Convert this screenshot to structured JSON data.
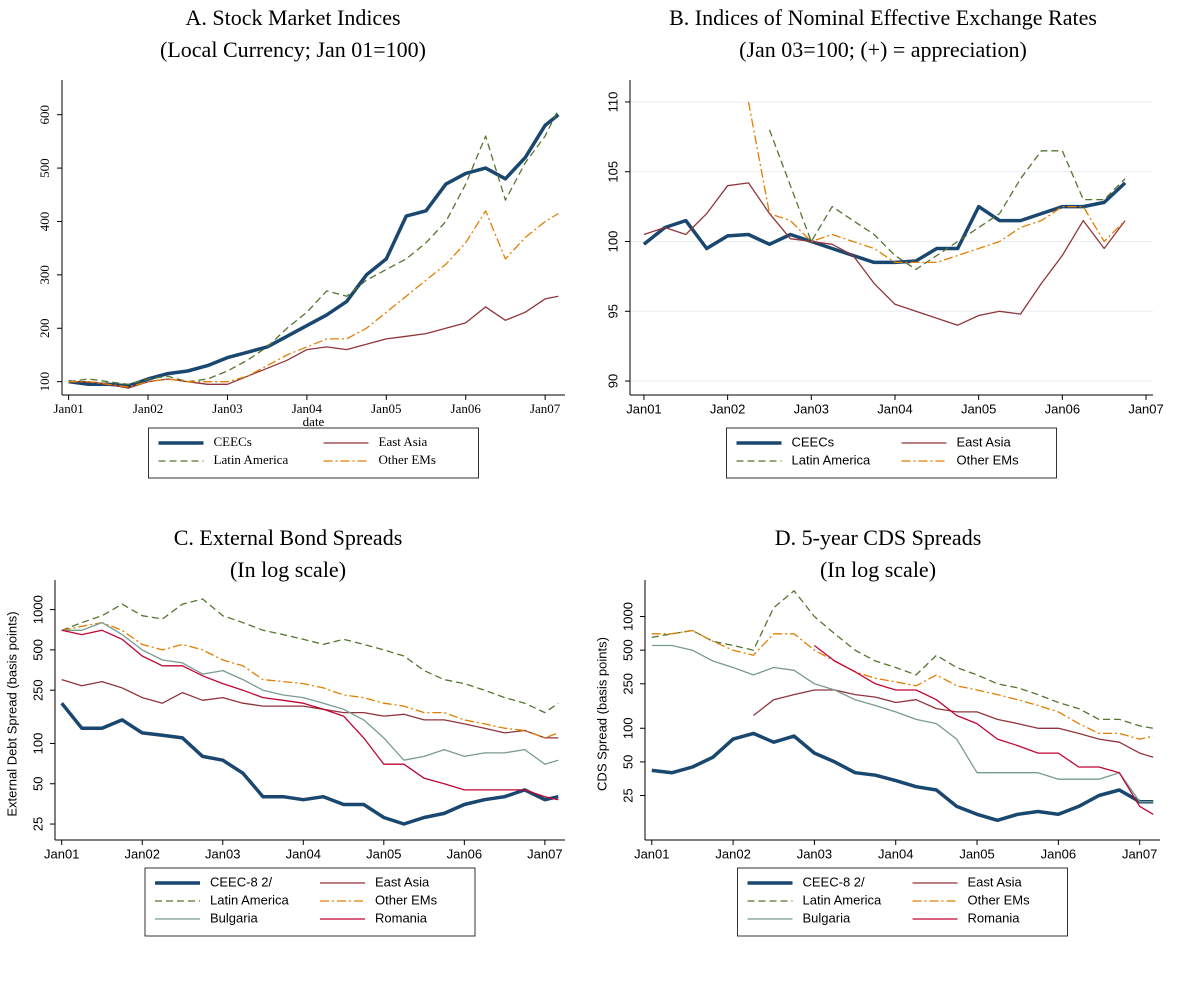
{
  "chart_data": [
    {
      "type": "line",
      "title": "A. Stock Market Indices",
      "subtitle": "(Local Currency; Jan 01=100)",
      "x_label": "date",
      "legend": "bottom",
      "grid": false,
      "x": [
        "2001-01",
        "2001-04",
        "2001-07",
        "2001-10",
        "2002-01",
        "2002-04",
        "2002-07",
        "2002-10",
        "2003-01",
        "2003-04",
        "2003-07",
        "2003-10",
        "2004-01",
        "2004-04",
        "2004-07",
        "2004-10",
        "2005-01",
        "2005-04",
        "2005-07",
        "2005-10",
        "2006-01",
        "2006-04",
        "2006-07",
        "2006-10",
        "2007-01",
        "2007-03"
      ],
      "xlim": [
        "2000-12",
        "2007-04"
      ],
      "xticks": [
        {
          "value": "2001-01",
          "label": "Jan01"
        },
        {
          "value": "2002-01",
          "label": "Jan02"
        },
        {
          "value": "2003-01",
          "label": "Jan03"
        },
        {
          "value": "2004-01",
          "label": "Jan04"
        },
        {
          "value": "2005-01",
          "label": "Jan05"
        },
        {
          "value": "2006-01",
          "label": "Jan06"
        },
        {
          "value": "2007-01",
          "label": "Jan07"
        }
      ],
      "ylim": [
        75,
        650
      ],
      "yticks": [
        100,
        200,
        300,
        400,
        500,
        600
      ],
      "series": [
        {
          "name": "CEECs",
          "color": "#1a476f",
          "style": "thick",
          "values": [
            100,
            95,
            95,
            92,
            105,
            115,
            120,
            130,
            145,
            155,
            165,
            185,
            205,
            225,
            250,
            300,
            330,
            410,
            420,
            470,
            490,
            500,
            480,
            520,
            580,
            600
          ]
        },
        {
          "name": "East Asia",
          "color": "#90353b",
          "style": "solid",
          "values": [
            100,
            100,
            95,
            88,
            100,
            105,
            100,
            95,
            95,
            110,
            125,
            140,
            160,
            165,
            160,
            170,
            180,
            185,
            190,
            200,
            210,
            240,
            215,
            230,
            255,
            260
          ]
        },
        {
          "name": "Latin America",
          "color": "#55752f",
          "style": "dash",
          "values": [
            100,
            105,
            100,
            95,
            105,
            110,
            100,
            105,
            120,
            140,
            165,
            200,
            230,
            270,
            260,
            290,
            310,
            330,
            360,
            400,
            470,
            560,
            440,
            510,
            560,
            610
          ]
        },
        {
          "name": "Other EMs",
          "color": "#e37e00",
          "style": "dashdot",
          "values": [
            100,
            100,
            95,
            90,
            100,
            105,
            100,
            100,
            100,
            110,
            130,
            150,
            165,
            180,
            180,
            200,
            230,
            260,
            290,
            320,
            360,
            420,
            330,
            370,
            400,
            415
          ]
        }
      ]
    },
    {
      "type": "line",
      "title": "B. Indices of Nominal Effective Exchange Rates",
      "subtitle": "(Jan 03=100; (+) = appreciation)",
      "legend": "bottom",
      "grid": true,
      "x": [
        "2001-01",
        "2001-04",
        "2001-07",
        "2001-10",
        "2002-01",
        "2002-04",
        "2002-07",
        "2002-10",
        "2003-01",
        "2003-04",
        "2003-07",
        "2003-10",
        "2004-01",
        "2004-04",
        "2004-07",
        "2004-10",
        "2005-01",
        "2005-04",
        "2005-07",
        "2005-10",
        "2006-01",
        "2006-04",
        "2006-07",
        "2006-10"
      ],
      "xlim": [
        "2000-11",
        "2007-02"
      ],
      "xticks": [
        {
          "value": "2001-01",
          "label": "Jan01"
        },
        {
          "value": "2002-01",
          "label": "Jan02"
        },
        {
          "value": "2003-01",
          "label": "Jan03"
        },
        {
          "value": "2004-01",
          "label": "Jan04"
        },
        {
          "value": "2005-01",
          "label": "Jan05"
        },
        {
          "value": "2006-01",
          "label": "Jan06"
        },
        {
          "value": "2007-01",
          "label": "Jan07"
        }
      ],
      "ylim": [
        89,
        111
      ],
      "yticks": [
        90,
        95,
        100,
        105,
        110
      ],
      "series": [
        {
          "name": "CEECs",
          "color": "#1a476f",
          "style": "thick",
          "values": [
            99.8,
            101,
            101.5,
            99.5,
            100.4,
            100.5,
            99.8,
            100.5,
            100,
            99.5,
            99,
            98.5,
            98.5,
            98.6,
            99.5,
            99.5,
            102.5,
            101.5,
            101.5,
            102,
            102.5,
            102.5,
            102.8,
            104.2
          ]
        },
        {
          "name": "East Asia",
          "color": "#90353b",
          "style": "solid",
          "values": [
            100.5,
            101,
            100.5,
            102,
            104,
            104.2,
            102,
            100.2,
            100,
            99.8,
            99,
            97,
            95.5,
            95,
            94.5,
            94,
            94.7,
            95,
            94.8,
            97,
            99,
            101.5,
            99.5,
            101.5
          ]
        },
        {
          "name": "Latin America",
          "color": "#55752f",
          "style": "dash",
          "values": [
            null,
            null,
            null,
            null,
            null,
            null,
            108,
            104,
            100,
            102.5,
            101.5,
            100.5,
            99,
            98,
            99,
            100,
            101,
            102,
            104.5,
            106.5,
            106.5,
            103,
            103,
            104.5
          ]
        },
        {
          "name": "Other EMs",
          "color": "#e37e00",
          "style": "dashdot",
          "values": [
            null,
            null,
            null,
            null,
            null,
            110,
            102,
            101.5,
            100,
            100.5,
            100,
            99.5,
            98.5,
            98.5,
            98.5,
            99,
            99.5,
            100,
            101,
            101.5,
            102.5,
            102.5,
            100,
            101.5
          ]
        }
      ]
    },
    {
      "type": "line",
      "title": "C. External Bond Spreads",
      "subtitle": "(In log scale)",
      "y_label": "External Debt Spread (basis points)",
      "legend": "bottom",
      "grid": false,
      "log": true,
      "x": [
        "2001-01",
        "2001-04",
        "2001-07",
        "2001-10",
        "2002-01",
        "2002-04",
        "2002-07",
        "2002-10",
        "2003-01",
        "2003-04",
        "2003-07",
        "2003-10",
        "2004-01",
        "2004-04",
        "2004-07",
        "2004-10",
        "2005-01",
        "2005-04",
        "2005-07",
        "2005-10",
        "2006-01",
        "2006-04",
        "2006-07",
        "2006-10",
        "2007-01",
        "2007-03"
      ],
      "xlim": [
        "2000-12",
        "2007-04"
      ],
      "xticks": [
        {
          "value": "2001-01",
          "label": "Jan01"
        },
        {
          "value": "2002-01",
          "label": "Jan02"
        },
        {
          "value": "2003-01",
          "label": "Jan03"
        },
        {
          "value": "2004-01",
          "label": "Jan04"
        },
        {
          "value": "2005-01",
          "label": "Jan05"
        },
        {
          "value": "2006-01",
          "label": "Jan06"
        },
        {
          "value": "2007-01",
          "label": "Jan07"
        }
      ],
      "ylim": [
        19,
        1450
      ],
      "yticks": [
        25,
        50,
        100,
        250,
        500,
        1000
      ],
      "series": [
        {
          "name": "CEEC-8 2/",
          "color": "#1a476f",
          "style": "thick",
          "values": [
            200,
            130,
            130,
            150,
            120,
            115,
            110,
            80,
            75,
            60,
            40,
            40,
            38,
            40,
            35,
            35,
            28,
            25,
            28,
            30,
            35,
            38,
            40,
            45,
            38,
            40
          ]
        },
        {
          "name": "East Asia",
          "color": "#90353b",
          "style": "solid",
          "values": [
            300,
            270,
            290,
            260,
            220,
            200,
            240,
            210,
            220,
            200,
            190,
            190,
            190,
            180,
            170,
            170,
            160,
            165,
            150,
            150,
            140,
            130,
            120,
            125,
            110,
            110
          ]
        },
        {
          "name": "Latin America",
          "color": "#55752f",
          "style": "dash",
          "values": [
            700,
            800,
            900,
            1100,
            900,
            850,
            1100,
            1200,
            900,
            800,
            700,
            650,
            600,
            550,
            600,
            550,
            500,
            450,
            350,
            300,
            280,
            250,
            220,
            200,
            170,
            200
          ]
        },
        {
          "name": "Other EMs",
          "color": "#e37e00",
          "style": "dashdot",
          "values": [
            700,
            750,
            800,
            700,
            550,
            500,
            550,
            500,
            420,
            380,
            300,
            290,
            280,
            260,
            230,
            220,
            200,
            190,
            170,
            170,
            150,
            140,
            130,
            125,
            110,
            120
          ]
        },
        {
          "name": "Bulgaria",
          "color": "#7a9a90",
          "style": "solid",
          "values": [
            700,
            700,
            800,
            650,
            500,
            420,
            400,
            330,
            350,
            300,
            250,
            230,
            220,
            200,
            180,
            150,
            110,
            75,
            80,
            90,
            80,
            85,
            85,
            90,
            70,
            75
          ]
        },
        {
          "name": "Romania",
          "color": "#c10534",
          "style": "solid",
          "values": [
            700,
            650,
            700,
            600,
            450,
            380,
            380,
            320,
            280,
            250,
            220,
            210,
            200,
            180,
            160,
            110,
            70,
            70,
            55,
            50,
            45,
            45,
            45,
            45,
            40,
            38
          ]
        }
      ]
    },
    {
      "type": "line",
      "title": "D. 5-year CDS Spreads",
      "subtitle": "(In log scale)",
      "y_label": "CDS Spread (basis points)",
      "legend": "bottom",
      "grid": false,
      "log": true,
      "x": [
        "2001-01",
        "2001-04",
        "2001-07",
        "2001-10",
        "2002-01",
        "2002-04",
        "2002-07",
        "2002-10",
        "2003-01",
        "2003-04",
        "2003-07",
        "2003-10",
        "2004-01",
        "2004-04",
        "2004-07",
        "2004-10",
        "2005-01",
        "2005-04",
        "2005-07",
        "2005-10",
        "2006-01",
        "2006-04",
        "2006-07",
        "2006-10",
        "2007-01",
        "2007-03"
      ],
      "xlim": [
        "2000-12",
        "2007-04"
      ],
      "xticks": [
        {
          "value": "2001-01",
          "label": "Jan01"
        },
        {
          "value": "2002-01",
          "label": "Jan02"
        },
        {
          "value": "2003-01",
          "label": "Jan03"
        },
        {
          "value": "2004-01",
          "label": "Jan04"
        },
        {
          "value": "2005-01",
          "label": "Jan05"
        },
        {
          "value": "2006-01",
          "label": "Jan06"
        },
        {
          "value": "2007-01",
          "label": "Jan07"
        }
      ],
      "ylim": [
        10,
        1800
      ],
      "yticks": [
        25,
        50,
        100,
        250,
        500,
        1000
      ],
      "series": [
        {
          "name": "CEEC-8 2/",
          "color": "#1a476f",
          "style": "thick",
          "values": [
            42,
            40,
            45,
            55,
            80,
            90,
            75,
            85,
            60,
            50,
            40,
            38,
            34,
            30,
            28,
            20,
            17,
            15,
            17,
            18,
            17,
            20,
            25,
            28,
            22,
            22
          ]
        },
        {
          "name": "East Asia",
          "color": "#90353b",
          "style": "solid",
          "values": [
            null,
            null,
            null,
            null,
            null,
            130,
            180,
            200,
            220,
            220,
            200,
            190,
            170,
            180,
            150,
            140,
            140,
            120,
            110,
            100,
            100,
            90,
            80,
            75,
            60,
            55
          ]
        },
        {
          "name": "Latin America",
          "color": "#55752f",
          "style": "dash",
          "values": [
            650,
            700,
            750,
            600,
            550,
            500,
            1200,
            1700,
            1000,
            700,
            500,
            400,
            350,
            300,
            450,
            350,
            300,
            250,
            230,
            200,
            170,
            150,
            120,
            120,
            105,
            100
          ]
        },
        {
          "name": "Other EMs",
          "color": "#e37e00",
          "style": "dashdot",
          "values": [
            700,
            700,
            750,
            600,
            500,
            450,
            700,
            700,
            500,
            400,
            320,
            280,
            260,
            240,
            300,
            240,
            220,
            200,
            180,
            160,
            140,
            110,
            90,
            90,
            80,
            85
          ]
        },
        {
          "name": "Bulgaria",
          "color": "#7a9a90",
          "style": "solid",
          "values": [
            550,
            550,
            500,
            400,
            350,
            300,
            350,
            330,
            250,
            220,
            180,
            160,
            140,
            120,
            110,
            80,
            40,
            40,
            40,
            40,
            35,
            35,
            35,
            40,
            22,
            22
          ]
        },
        {
          "name": "Romania",
          "color": "#c10534",
          "style": "solid",
          "values": [
            null,
            null,
            null,
            null,
            null,
            null,
            null,
            null,
            550,
            400,
            320,
            250,
            220,
            220,
            180,
            130,
            110,
            80,
            70,
            60,
            60,
            45,
            45,
            40,
            20,
            17
          ]
        }
      ]
    }
  ]
}
